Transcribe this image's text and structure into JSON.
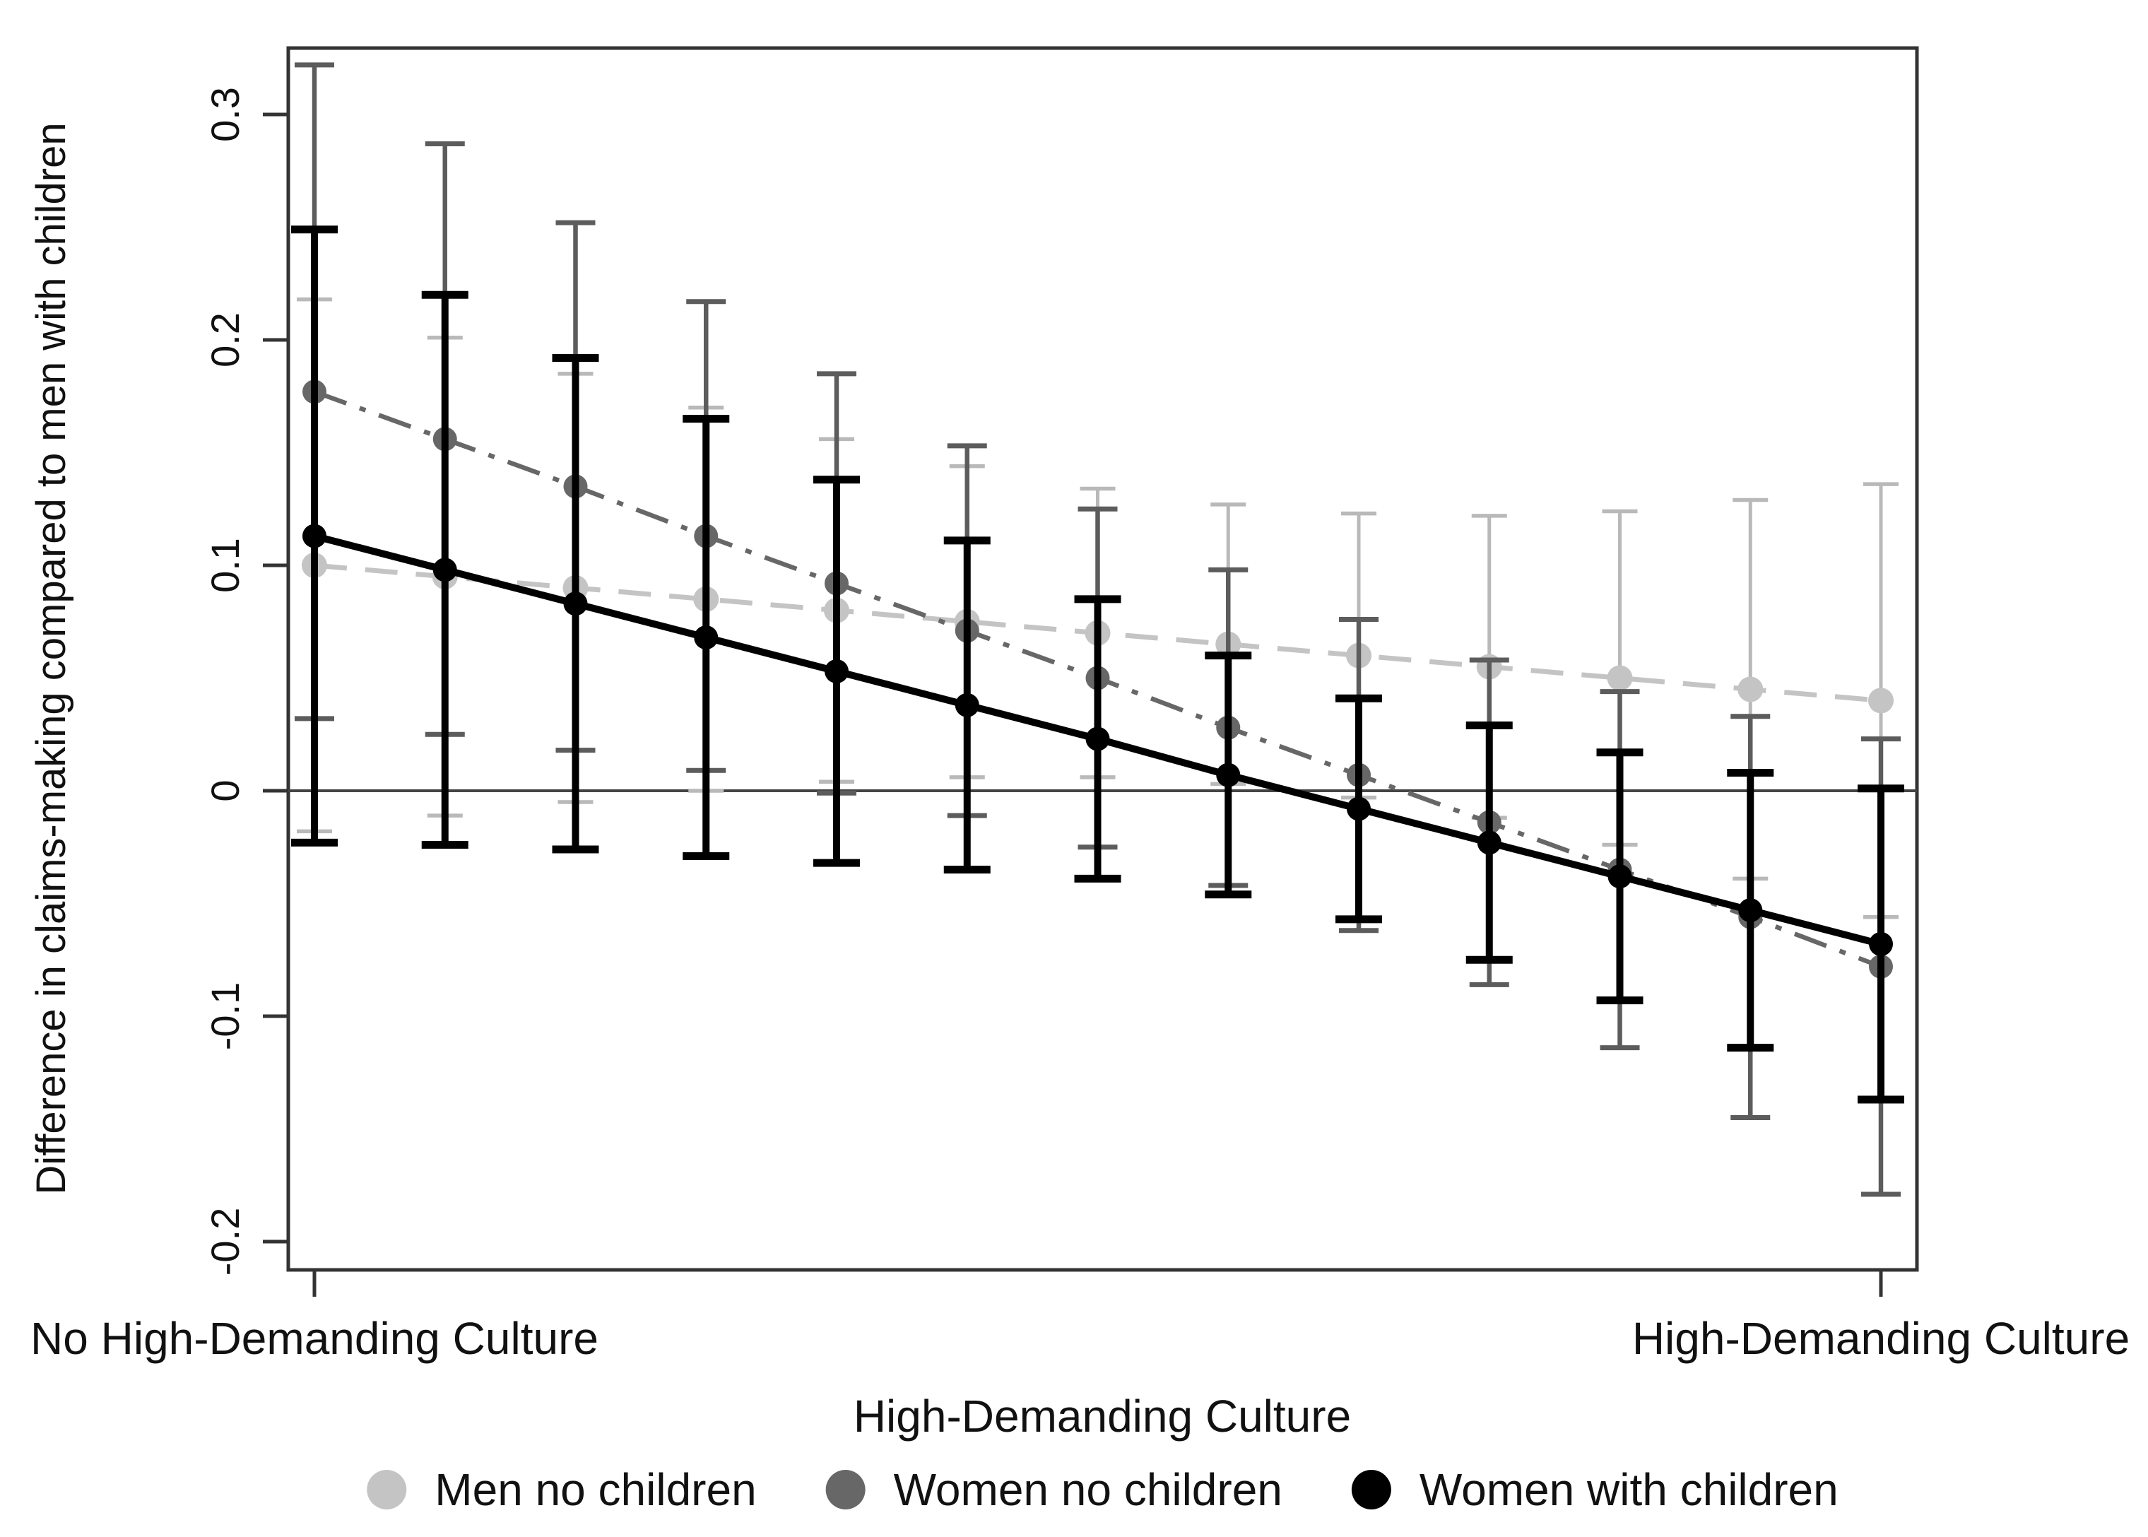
{
  "figure": {
    "background": "#ffffff",
    "frame_color": "#333333",
    "zero_line_color": "#444444",
    "text_color": "#111111"
  },
  "chart_data": {
    "type": "line",
    "title": "",
    "grid": false,
    "legend_position": "bottom",
    "reference_line_y": 0,
    "x": [
      1,
      2,
      3,
      4,
      5,
      6,
      7,
      8,
      9,
      10,
      11,
      12,
      13
    ],
    "x_axis": {
      "title": "High-Demanding Culture",
      "left_tick_label": "No High-Demanding Culture",
      "right_tick_label": "High-Demanding Culture"
    },
    "y_axis": {
      "title": "Difference in claims-making compared to men with children",
      "ticks": [
        0.3,
        0.2,
        0.1,
        0,
        -0.1,
        -0.2
      ],
      "tick_labels": [
        "0.3",
        "0.2",
        "0.1",
        "0",
        "-0.1",
        "-0.2"
      ],
      "range": [
        -0.213,
        0.329
      ]
    },
    "series": [
      {
        "name": "Men no children",
        "marker": "circle",
        "line_style": "dashed",
        "color": "#c4c4c4",
        "error_color": "#b9b9b9",
        "values": [
          0.1,
          0.095,
          0.09,
          0.085,
          0.08,
          0.075,
          0.07,
          0.065,
          0.06,
          0.055,
          0.05,
          0.045,
          0.04
        ],
        "ci_lower": [
          -0.018,
          -0.011,
          -0.005,
          0.0,
          0.004,
          0.006,
          0.006,
          0.003,
          -0.003,
          -0.012,
          -0.024,
          -0.039,
          -0.056
        ],
        "ci_upper": [
          0.218,
          0.201,
          0.185,
          0.17,
          0.156,
          0.144,
          0.134,
          0.127,
          0.123,
          0.122,
          0.124,
          0.129,
          0.136
        ]
      },
      {
        "name": "Women no children",
        "marker": "circle",
        "line_style": "dash-dot",
        "color": "#676767",
        "error_color": "#5c5c5c",
        "values": [
          0.177,
          0.156,
          0.135,
          0.113,
          0.092,
          0.071,
          0.05,
          0.028,
          0.007,
          -0.014,
          -0.035,
          -0.056,
          -0.078
        ],
        "ci_lower": [
          0.032,
          0.025,
          0.018,
          0.009,
          -0.001,
          -0.011,
          -0.025,
          -0.042,
          -0.062,
          -0.086,
          -0.114,
          -0.145,
          -0.179
        ],
        "ci_upper": [
          0.322,
          0.287,
          0.252,
          0.217,
          0.185,
          0.153,
          0.125,
          0.098,
          0.076,
          0.058,
          0.044,
          0.033,
          0.023
        ]
      },
      {
        "name": "Women with children",
        "marker": "circle",
        "line_style": "solid",
        "color": "#000000",
        "error_color": "#000000",
        "values": [
          0.113,
          0.098,
          0.083,
          0.068,
          0.053,
          0.038,
          0.023,
          0.007,
          -0.008,
          -0.023,
          -0.038,
          -0.053,
          -0.068
        ],
        "ci_lower": [
          -0.023,
          -0.024,
          -0.026,
          -0.029,
          -0.032,
          -0.035,
          -0.039,
          -0.046,
          -0.057,
          -0.075,
          -0.093,
          -0.114,
          -0.137
        ],
        "ci_upper": [
          0.249,
          0.22,
          0.192,
          0.165,
          0.138,
          0.111,
          0.085,
          0.06,
          0.041,
          0.029,
          0.017,
          0.008,
          0.001
        ]
      }
    ]
  }
}
